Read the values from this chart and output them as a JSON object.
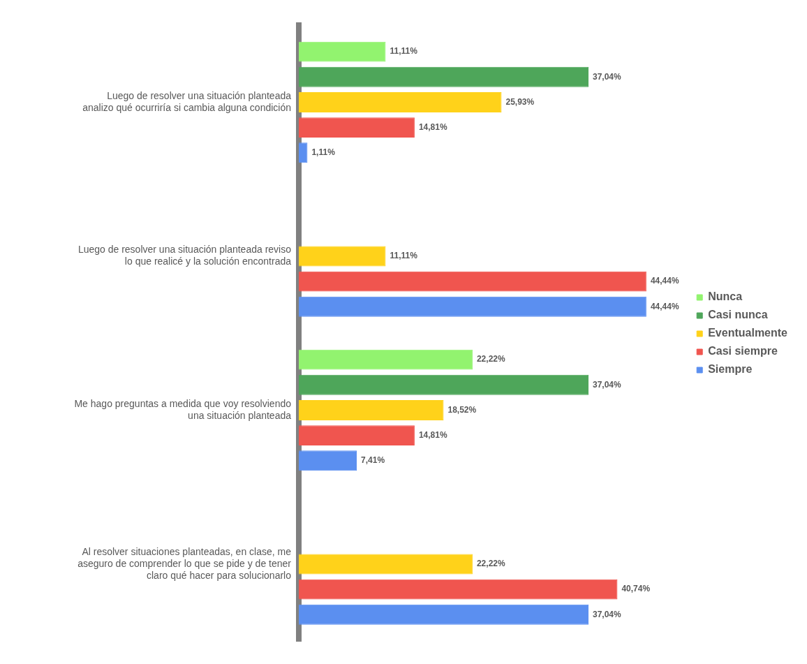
{
  "chart_data": {
    "type": "bar",
    "orientation": "horizontal",
    "categories": [
      "Luego de resolver una situación planteada analizo qué ocurriría si cambia alguna condición",
      "Luego de resolver una situación planteada reviso lo que realicé y la solución encontrada",
      "Me hago preguntas a medida que voy resolviendo una situación planteada",
      "Al resolver situaciones planteadas, en clase, me aseguro de comprender lo que se pide y de tener claro qué hacer para solucionarlo"
    ],
    "series": [
      {
        "name": "Nunca",
        "color": "#92f36f",
        "values": [
          11.11,
          0,
          22.22,
          0
        ],
        "value_labels": [
          "11,11%",
          null,
          "22,22%",
          null
        ]
      },
      {
        "name": "Casi nunca",
        "color": "#4ea65a",
        "values": [
          37.04,
          0,
          37.04,
          0
        ],
        "value_labels": [
          "37,04%",
          null,
          "37,04%",
          null
        ]
      },
      {
        "name": "Eventualmente",
        "color": "#ffd21a",
        "values": [
          25.93,
          11.11,
          18.52,
          22.22
        ],
        "value_labels": [
          "25,93%",
          "11,11%",
          "18,52%",
          "22,22%"
        ]
      },
      {
        "name": "Casi siempre",
        "color": "#f0554f",
        "values": [
          14.81,
          44.44,
          14.81,
          40.74
        ],
        "value_labels": [
          "14,81%",
          "44,44%",
          "14,81%",
          "40,74%"
        ]
      },
      {
        "name": "Siempre",
        "color": "#5b8ff0",
        "values": [
          1.11,
          44.44,
          7.41,
          37.04
        ],
        "value_labels": [
          "1,11%",
          "44,44%",
          "7,41%",
          "37,04%"
        ]
      }
    ],
    "legend": "right",
    "grid": false,
    "tick_labels": "y"
  }
}
